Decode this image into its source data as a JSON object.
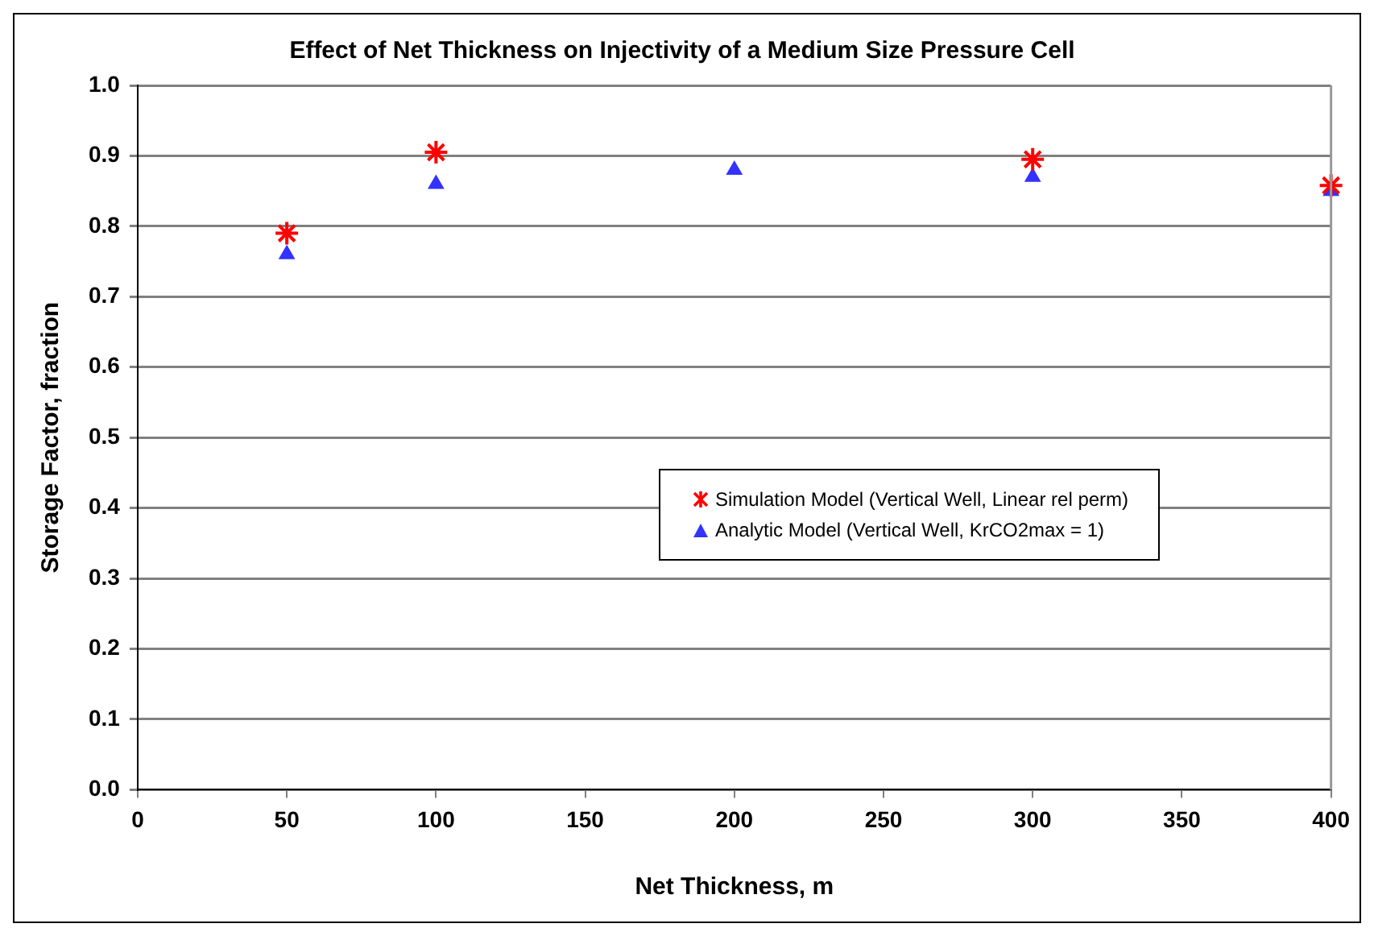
{
  "chart_data": {
    "type": "scatter",
    "title": "Effect of Net Thickness on Injectivity of a Medium Size Pressure Cell",
    "xlabel": "Net Thickness, m",
    "ylabel": "Storage Factor, fraction",
    "xlim": [
      0,
      400
    ],
    "xticks": [
      0,
      50,
      100,
      150,
      200,
      250,
      300,
      350,
      400
    ],
    "ylim": [
      0,
      1
    ],
    "yticks": [
      {
        "value": 0,
        "label": "0.0"
      },
      0.1,
      0.2,
      0.3,
      0.4,
      0.5,
      0.6,
      0.7,
      0.8,
      0.9,
      {
        "value": 1,
        "label": "1.0"
      }
    ],
    "grid": "y",
    "legend": "right",
    "series": [
      {
        "name": "Simulation Model (Vertical Well, Linear rel perm)",
        "color": "#ff0000",
        "marker": "cross",
        "x": [
          50,
          100,
          300,
          400
        ],
        "values": [
          0.79,
          0.905,
          0.895,
          0.858
        ]
      },
      {
        "name": "Analytic Model (Vertical Well, KrCO2max = 1)",
        "color": "#3333ff",
        "marker": "triangle",
        "x": [
          50,
          100,
          200,
          300,
          400
        ],
        "values": [
          0.76,
          0.86,
          0.88,
          0.87,
          0.85
        ]
      }
    ]
  }
}
